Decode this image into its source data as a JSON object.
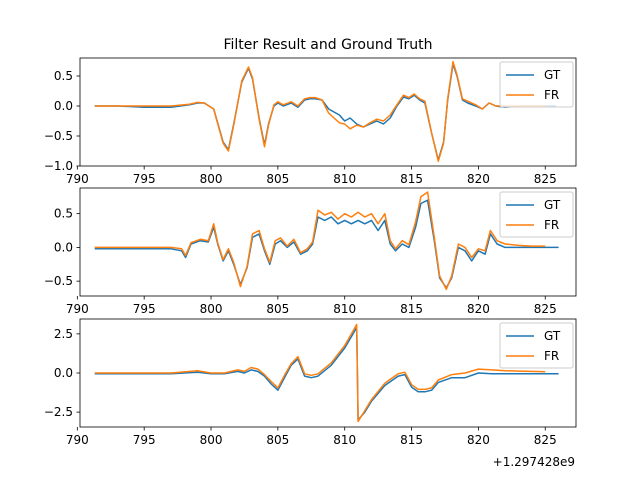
{
  "title": "Filter Result and Ground Truth",
  "x_offset_label": "+1.297428e9",
  "colors": {
    "GT": "#1f77b4",
    "FR": "#ff7f0e"
  },
  "chart_data": [
    {
      "type": "line",
      "title": "Filter Result and Ground Truth",
      "xlim": [
        790.2,
        827.3
      ],
      "ylim": [
        -1.0,
        0.8
      ],
      "xticks": [
        790,
        795,
        800,
        805,
        810,
        815,
        820,
        825
      ],
      "yticks": [
        0.5,
        0.0,
        -0.5,
        -1.0
      ],
      "ytick_labels": [
        "0.5",
        "0.0",
        "−0.5",
        "−1.0"
      ],
      "legend": "top-right",
      "series": [
        {
          "name": "GT",
          "color": "#1f77b4",
          "x": [
            791.3,
            793,
            795,
            797,
            798.4,
            799.0,
            799.5,
            800.2,
            800.9,
            801.3,
            801.7,
            802.3,
            802.8,
            803.1,
            803.6,
            804.0,
            804.3,
            804.7,
            805.0,
            805.4,
            806.0,
            806.5,
            807.0,
            807.4,
            807.8,
            808.3,
            808.8,
            809.2,
            809.6,
            810.0,
            810.4,
            810.9,
            811.4,
            811.9,
            812.4,
            812.9,
            813.4,
            813.9,
            814.4,
            814.8,
            815.2,
            815.6,
            816.0,
            816.5,
            817.0,
            817.4,
            817.7,
            818.1,
            818.4,
            818.8,
            819.2,
            819.8,
            820.3,
            820.8,
            821.3,
            822.0,
            823.0,
            824.0,
            825.0,
            825.8
          ],
          "y": [
            0.0,
            0.0,
            -0.02,
            -0.02,
            0.02,
            0.05,
            0.05,
            -0.05,
            -0.6,
            -0.73,
            -0.3,
            0.4,
            0.63,
            0.45,
            -0.2,
            -0.65,
            -0.3,
            0.0,
            0.05,
            0.0,
            0.05,
            -0.02,
            0.1,
            0.12,
            0.12,
            0.1,
            -0.05,
            -0.1,
            -0.15,
            -0.25,
            -0.2,
            -0.3,
            -0.35,
            -0.3,
            -0.25,
            -0.3,
            -0.2,
            0.0,
            0.15,
            0.12,
            0.18,
            0.1,
            0.05,
            -0.45,
            -0.9,
            -0.6,
            0.1,
            0.7,
            0.5,
            0.1,
            0.05,
            0.0,
            -0.05,
            0.05,
            0.0,
            -0.02,
            0.0,
            0.0,
            0.0,
            0.0
          ]
        },
        {
          "name": "FR",
          "color": "#ff7f0e",
          "x": [
            791.3,
            793,
            795,
            797,
            798.4,
            799.0,
            799.5,
            800.2,
            800.9,
            801.3,
            801.7,
            802.3,
            802.8,
            803.1,
            803.6,
            804.0,
            804.3,
            804.7,
            805.0,
            805.4,
            806.0,
            806.5,
            807.0,
            807.4,
            807.8,
            808.3,
            808.8,
            809.2,
            809.6,
            810.0,
            810.4,
            810.9,
            811.4,
            811.9,
            812.4,
            812.9,
            813.4,
            813.9,
            814.4,
            814.8,
            815.2,
            815.6,
            816.0,
            816.5,
            817.0,
            817.4,
            817.7,
            818.1,
            818.4,
            818.8,
            819.2,
            819.8,
            820.3,
            820.8,
            821.3,
            822.0,
            823.0,
            824.0,
            825.0
          ],
          "y": [
            0.0,
            0.0,
            0.0,
            0.0,
            0.03,
            0.06,
            0.05,
            -0.05,
            -0.62,
            -0.75,
            -0.32,
            0.42,
            0.65,
            0.47,
            -0.22,
            -0.68,
            -0.32,
            0.02,
            0.07,
            0.02,
            0.07,
            0.0,
            0.12,
            0.14,
            0.14,
            0.1,
            -0.12,
            -0.2,
            -0.28,
            -0.3,
            -0.38,
            -0.32,
            -0.35,
            -0.28,
            -0.22,
            -0.25,
            -0.15,
            0.02,
            0.18,
            0.14,
            0.2,
            0.12,
            0.08,
            -0.45,
            -0.92,
            -0.62,
            0.12,
            0.74,
            0.52,
            0.12,
            0.08,
            0.02,
            -0.05,
            0.05,
            0.0,
            0.0,
            0.0,
            0.0,
            0.0
          ]
        }
      ]
    },
    {
      "type": "line",
      "xlim": [
        790.2,
        827.3
      ],
      "ylim": [
        -0.72,
        0.88
      ],
      "xticks": [
        790,
        795,
        800,
        805,
        810,
        815,
        820,
        825
      ],
      "yticks": [
        0.5,
        0.0,
        -0.5
      ],
      "ytick_labels": [
        "0.5",
        "0.0",
        "−0.5"
      ],
      "legend": "top-right",
      "series": [
        {
          "name": "GT",
          "color": "#1f77b4",
          "x": [
            791.3,
            793,
            795,
            797,
            797.8,
            798.1,
            798.5,
            799.2,
            799.8,
            800.2,
            800.5,
            800.9,
            801.3,
            801.7,
            802.2,
            802.7,
            803.1,
            803.6,
            804.0,
            804.4,
            804.8,
            805.2,
            805.7,
            806.2,
            806.7,
            807.2,
            807.6,
            808.0,
            808.5,
            809.0,
            809.5,
            810.0,
            810.5,
            811.0,
            811.5,
            812.0,
            812.5,
            813.0,
            813.4,
            813.8,
            814.3,
            814.8,
            815.3,
            815.7,
            816.2,
            816.7,
            817.1,
            817.6,
            818.0,
            818.5,
            819.0,
            819.5,
            820.0,
            820.5,
            820.9,
            821.4,
            822.0,
            823.0,
            824.0,
            825.0,
            826.0
          ],
          "y": [
            -0.02,
            -0.02,
            -0.02,
            -0.02,
            -0.05,
            -0.15,
            0.05,
            0.1,
            0.08,
            0.3,
            0.05,
            -0.2,
            -0.05,
            -0.25,
            -0.55,
            -0.3,
            0.15,
            0.2,
            -0.05,
            -0.25,
            0.05,
            0.1,
            0.0,
            0.08,
            -0.1,
            -0.05,
            0.05,
            0.45,
            0.4,
            0.45,
            0.35,
            0.4,
            0.35,
            0.4,
            0.35,
            0.4,
            0.25,
            0.4,
            0.05,
            -0.05,
            0.05,
            0.0,
            0.3,
            0.65,
            0.7,
            0.1,
            -0.45,
            -0.6,
            -0.45,
            0.0,
            -0.05,
            -0.2,
            -0.05,
            -0.1,
            0.2,
            0.05,
            0.0,
            0.0,
            0.0,
            0.0,
            0.0
          ]
        },
        {
          "name": "FR",
          "color": "#ff7f0e",
          "x": [
            791.3,
            793,
            795,
            797,
            797.8,
            798.1,
            798.5,
            799.2,
            799.8,
            800.2,
            800.5,
            800.9,
            801.3,
            801.7,
            802.2,
            802.7,
            803.1,
            803.6,
            804.0,
            804.4,
            804.8,
            805.2,
            805.7,
            806.2,
            806.7,
            807.2,
            807.6,
            808.0,
            808.5,
            809.0,
            809.5,
            810.0,
            810.5,
            811.0,
            811.5,
            812.0,
            812.5,
            813.0,
            813.4,
            813.8,
            814.3,
            814.8,
            815.3,
            815.7,
            816.2,
            816.7,
            817.1,
            817.6,
            818.0,
            818.5,
            819.0,
            819.5,
            820.0,
            820.5,
            820.9,
            821.4,
            822.0,
            823.0,
            824.0,
            825.0
          ],
          "y": [
            0.0,
            0.0,
            0.0,
            0.0,
            -0.02,
            -0.12,
            0.07,
            0.12,
            0.1,
            0.35,
            0.07,
            -0.18,
            -0.02,
            -0.22,
            -0.58,
            -0.28,
            0.2,
            0.25,
            -0.02,
            -0.22,
            0.1,
            0.14,
            0.02,
            0.12,
            -0.08,
            -0.02,
            0.08,
            0.55,
            0.48,
            0.52,
            0.42,
            0.5,
            0.45,
            0.52,
            0.45,
            0.5,
            0.35,
            0.5,
            0.1,
            -0.02,
            0.1,
            0.04,
            0.38,
            0.75,
            0.82,
            0.15,
            -0.42,
            -0.62,
            -0.42,
            0.05,
            0.0,
            -0.15,
            -0.02,
            -0.05,
            0.25,
            0.1,
            0.05,
            0.03,
            0.02,
            0.02
          ]
        }
      ]
    },
    {
      "type": "line",
      "xlim": [
        790.2,
        827.3
      ],
      "ylim": [
        -3.45,
        3.45
      ],
      "xticks": [
        790,
        795,
        800,
        805,
        810,
        815,
        820,
        825
      ],
      "yticks": [
        2.5,
        0.0,
        -2.5
      ],
      "ytick_labels": [
        "2.5",
        "0.0",
        "−2.5"
      ],
      "legend": "top-right",
      "series": [
        {
          "name": "GT",
          "color": "#1f77b4",
          "x": [
            791.3,
            793,
            795,
            797,
            799,
            800,
            801,
            802,
            802.5,
            803,
            803.5,
            804,
            804.5,
            805,
            805.5,
            806.0,
            806.5,
            807.0,
            807.5,
            808.0,
            809.0,
            810.0,
            810.9,
            811.0,
            811.5,
            812.0,
            813.0,
            814.0,
            814.5,
            815.0,
            815.5,
            816.0,
            816.5,
            817.0,
            818.0,
            819.0,
            820.0,
            821.0,
            822.0,
            823.0,
            824.0,
            825.0,
            826.0
          ],
          "y": [
            -0.05,
            -0.05,
            -0.05,
            -0.05,
            0.05,
            -0.05,
            -0.05,
            0.1,
            0.0,
            0.2,
            0.1,
            -0.2,
            -0.7,
            -1.1,
            -0.3,
            0.5,
            0.9,
            -0.2,
            -0.3,
            -0.2,
            0.5,
            1.6,
            2.9,
            -3.0,
            -2.5,
            -1.8,
            -0.8,
            -0.2,
            -0.1,
            -0.9,
            -1.2,
            -1.2,
            -1.1,
            -0.6,
            -0.3,
            -0.3,
            0.0,
            -0.05,
            -0.05,
            -0.05,
            -0.05,
            -0.05,
            -0.05
          ]
        },
        {
          "name": "FR",
          "color": "#ff7f0e",
          "x": [
            791.3,
            793,
            795,
            797,
            799,
            800,
            801,
            802,
            802.5,
            803,
            803.5,
            804,
            804.5,
            805,
            805.5,
            806.0,
            806.5,
            807.0,
            807.5,
            808.0,
            809.0,
            810.0,
            810.9,
            811.0,
            811.5,
            812.0,
            813.0,
            814.0,
            814.5,
            815.0,
            815.5,
            816.0,
            816.5,
            817.0,
            818.0,
            819.0,
            820.0,
            821.0,
            822.0,
            823.0,
            824.0,
            825.0
          ],
          "y": [
            0.0,
            0.0,
            0.0,
            0.0,
            0.15,
            0.0,
            0.0,
            0.2,
            0.1,
            0.35,
            0.25,
            -0.1,
            -0.55,
            -0.95,
            -0.15,
            0.6,
            1.05,
            -0.05,
            -0.15,
            -0.05,
            0.65,
            1.75,
            3.1,
            -3.1,
            -2.4,
            -1.7,
            -0.65,
            -0.05,
            0.05,
            -0.75,
            -1.05,
            -1.05,
            -0.95,
            -0.45,
            -0.1,
            0.0,
            0.25,
            0.2,
            0.15,
            0.12,
            0.1,
            0.08
          ]
        }
      ]
    }
  ]
}
